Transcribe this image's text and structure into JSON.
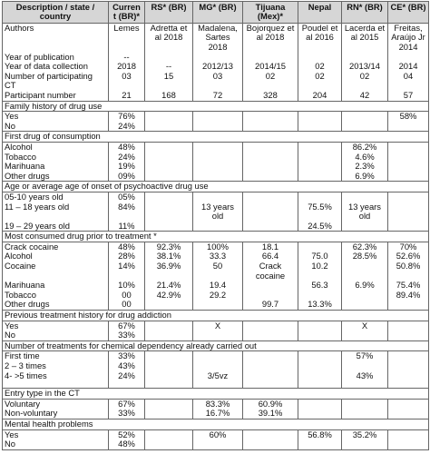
{
  "headers": [
    "Description / state / country",
    "Curren t (BR)*",
    "RS* (BR)",
    "MG* (BR)",
    "Tijuana (Mex)*",
    "Nepal",
    "RN* (BR)",
    "CE* (BR)"
  ],
  "meta": {
    "authors": [
      "Authors",
      "Lemes",
      "Adretta et al 2018",
      "Madalena, Sartes 2018",
      "Bojorquez et al 2018",
      "Poudel et al 2016",
      "Lacerda et al 2015",
      "Freitas, Araújo Jr 2014"
    ],
    "year_publication": [
      "Year of publication",
      "--",
      "",
      "",
      "",
      "",
      "",
      ""
    ],
    "year_collection": [
      "Year of data collection",
      "2018",
      "--",
      "2012/13",
      "2014/15",
      "02",
      "2013/14",
      "2014"
    ],
    "num_ct": [
      "Number of participating CT",
      "03",
      "15",
      "03",
      "02",
      "02",
      "02",
      "04"
    ],
    "participants": [
      "Participant number",
      "21",
      "168",
      "72",
      "328",
      "204",
      "42",
      "57"
    ]
  },
  "sections": {
    "family": "Family history of drug use",
    "first_drug": "First drug of consumption",
    "onset_age": "Age or average age of onset of psychoactive drug use",
    "most_consumed": "Most consumed drug prior to treatment *",
    "previous": "Previous treatment history for drug addiction",
    "num_treatments": "Number of treatments for chemical dependency already carried out",
    "entry_type": "Entry type in the CT",
    "mental": "Mental health problems"
  },
  "family_rows": [
    [
      "Yes",
      "76%",
      "",
      "",
      "",
      "",
      "",
      "58%"
    ],
    [
      "No",
      "24%",
      "",
      "",
      "",
      "",
      "",
      ""
    ]
  ],
  "first_drug_rows": [
    [
      "Alcohol",
      "48%",
      "",
      "",
      "",
      "",
      "86.2%",
      ""
    ],
    [
      "Tobacco",
      "24%",
      "",
      "",
      "",
      "",
      "4.6%",
      ""
    ],
    [
      "Marihuana",
      "19%",
      "",
      "",
      "",
      "",
      "2.3%",
      ""
    ],
    [
      "Other drugs",
      "09%",
      "",
      "",
      "",
      "",
      "6.9%",
      ""
    ]
  ],
  "onset_rows": [
    [
      "05-10 years old",
      "05%",
      "",
      "",
      "",
      "",
      "",
      ""
    ],
    [
      "11 – 18 years old",
      "84%",
      "",
      "13 years old",
      "",
      "75.5%",
      "13 years old",
      ""
    ],
    [
      "19 – 29 years old",
      "11%",
      "",
      "",
      "",
      "24.5%",
      "",
      ""
    ]
  ],
  "consumed_rows": [
    [
      "Crack cocaine",
      "48%",
      "92.3%",
      "100%",
      "18.1",
      "",
      "62.3%",
      "70%"
    ],
    [
      "Alcohol",
      "28%",
      "38.1%",
      "33.3",
      "66.4",
      "75.0",
      "28.5%",
      "52.6%"
    ],
    [
      "Cocaine",
      "14%",
      "36.9%",
      "50",
      "Crack cocaine",
      "10.2",
      "",
      "50.8%"
    ],
    [
      "Marihuana",
      "10%",
      "21.4%",
      "19.4",
      "",
      "56.3",
      "6.9%",
      "75.4%"
    ],
    [
      "Tobacco",
      "00",
      "42.9%",
      "29.2",
      "",
      "",
      "",
      "89.4%"
    ],
    [
      "Other drugs",
      "00",
      "",
      "",
      "99.7",
      "13.3%",
      "",
      ""
    ]
  ],
  "previous_rows": [
    [
      "Yes",
      "67%",
      "",
      "X",
      "",
      "",
      "X",
      ""
    ],
    [
      "No",
      "33%",
      "",
      "",
      "",
      "",
      "",
      ""
    ]
  ],
  "treatments_rows": [
    [
      "First time",
      "33%",
      "",
      "",
      "",
      "",
      "57%",
      ""
    ],
    [
      "2 – 3 times",
      "43%",
      "",
      "",
      "",
      "",
      "",
      ""
    ],
    [
      "4- >5 times",
      "24%",
      "",
      "3/5vz",
      "",
      "",
      "43%",
      ""
    ]
  ],
  "entry_rows": [
    [
      "Voluntary",
      "67%",
      "",
      "83.3%",
      "60.9%",
      "",
      "",
      ""
    ],
    [
      "Non-voluntary",
      "33%",
      "",
      "16.7%",
      "39.1%",
      "",
      "",
      ""
    ]
  ],
  "mental_rows": [
    [
      "Yes",
      "52%",
      "",
      "60%",
      "",
      "56.8%",
      "35.2%",
      ""
    ],
    [
      "No",
      "48%",
      "",
      "",
      "",
      "",
      "",
      ""
    ]
  ]
}
